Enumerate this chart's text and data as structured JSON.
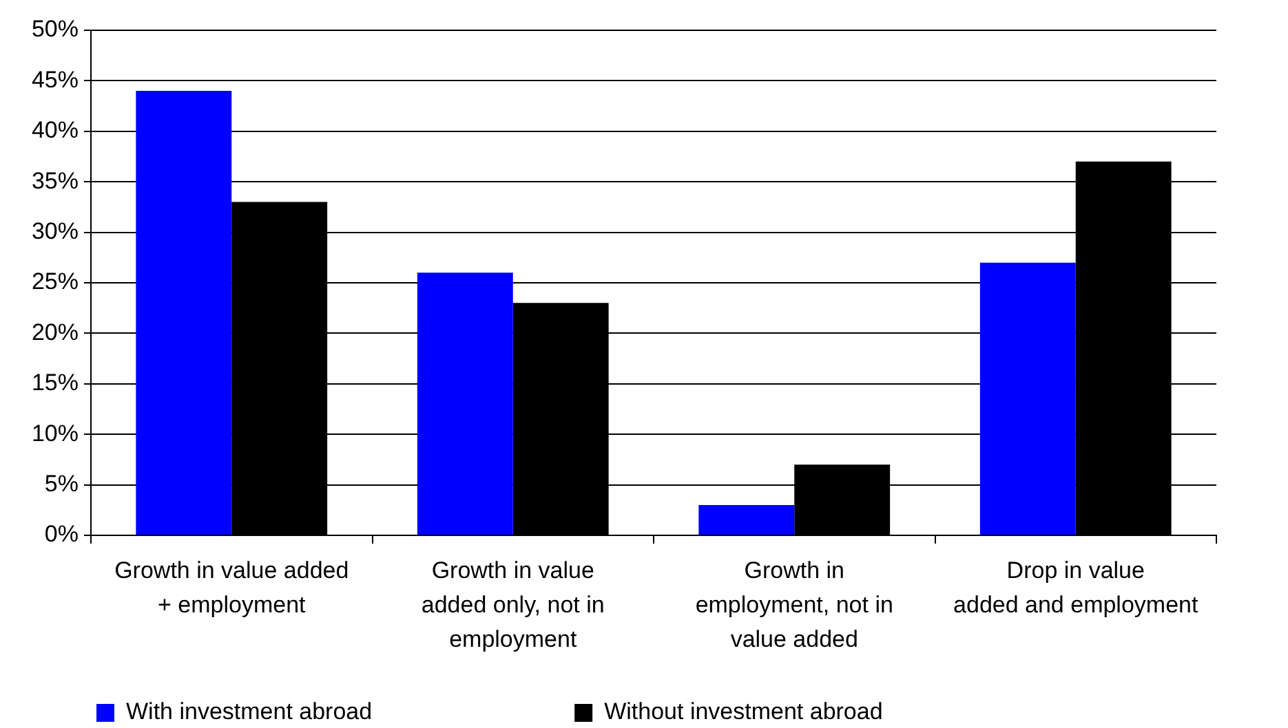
{
  "chart_data": {
    "type": "bar",
    "categories": [
      "Growth in value added\n+ employment",
      "Growth in value\nadded only, not in\nemployment",
      "Growth in\nemployment, not in\nvalue added",
      "Drop in value\nadded and employment"
    ],
    "series": [
      {
        "name": "With investment abroad",
        "color": "#0000ff",
        "values": [
          44,
          26,
          3,
          27
        ]
      },
      {
        "name": "Without investment abroad",
        "color": "#000000",
        "values": [
          33,
          23,
          7,
          37
        ]
      }
    ],
    "ylim": [
      0,
      50
    ],
    "yticks": [
      {
        "value": 0,
        "label": "0%"
      },
      {
        "value": 5,
        "label": "5%"
      },
      {
        "value": 10,
        "label": "10%"
      },
      {
        "value": 15,
        "label": "15%"
      },
      {
        "value": 20,
        "label": "20%"
      },
      {
        "value": 25,
        "label": "25%"
      },
      {
        "value": 30,
        "label": "30%"
      },
      {
        "value": 35,
        "label": "35%"
      },
      {
        "value": 40,
        "label": "40%"
      },
      {
        "value": 45,
        "label": "45%"
      },
      {
        "value": 50,
        "label": "50%"
      }
    ],
    "grid": "y",
    "legend": "bottom left"
  }
}
